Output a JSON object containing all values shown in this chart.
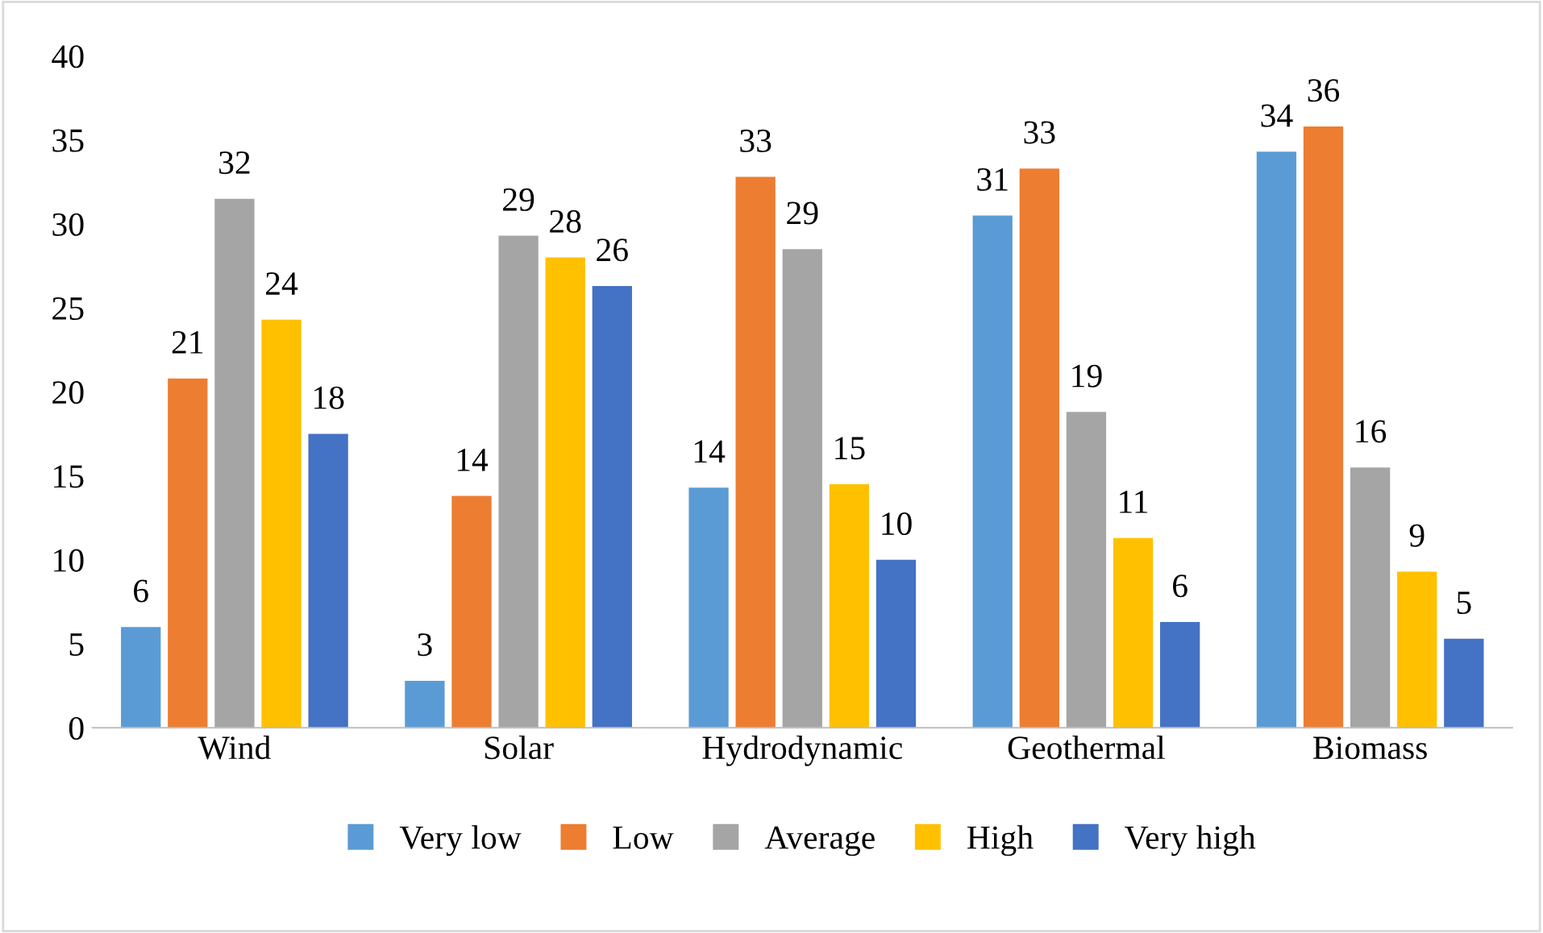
{
  "chart_data": {
    "type": "bar",
    "categories": [
      "Wind",
      "Solar",
      "Hydrodynamic",
      "Geothermal",
      "Biomass"
    ],
    "series": [
      {
        "name": "Very low",
        "color": "#5b9bd5",
        "values": [
          6.0,
          2.8,
          14.3,
          30.5,
          34.3
        ],
        "value_labels": [
          "6",
          "3",
          "14",
          "31",
          "34"
        ]
      },
      {
        "name": "Low",
        "color": "#ed7d31",
        "values": [
          20.8,
          13.8,
          32.8,
          33.3,
          35.8
        ],
        "value_labels": [
          "21",
          "14",
          "33",
          "33",
          "36"
        ]
      },
      {
        "name": "Average",
        "color": "#a5a5a5",
        "values": [
          31.5,
          29.3,
          28.5,
          18.8,
          15.5
        ],
        "value_labels": [
          "32",
          "29",
          "29",
          "19",
          "16"
        ]
      },
      {
        "name": "High",
        "color": "#ffc000",
        "values": [
          24.3,
          28.0,
          14.5,
          11.3,
          9.3
        ],
        "value_labels": [
          "24",
          "28",
          "15",
          "11",
          "9"
        ]
      },
      {
        "name": "Very high",
        "color": "#4472c4",
        "values": [
          17.5,
          26.3,
          10.0,
          6.3,
          5.3
        ],
        "value_labels": [
          "18",
          "26",
          "10",
          "6",
          "5"
        ]
      }
    ],
    "ylim": [
      0,
      40
    ],
    "yticks": [
      0,
      5,
      10,
      15,
      20,
      25,
      30,
      35,
      40
    ],
    "grid": false,
    "legend": "bottom"
  }
}
